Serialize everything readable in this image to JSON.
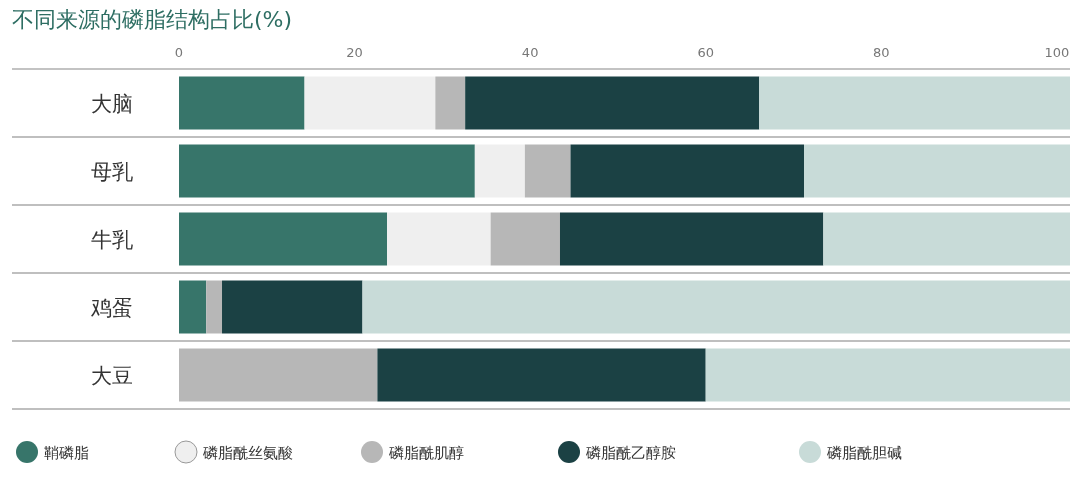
{
  "chart_data": {
    "type": "bar",
    "orientation": "horizontal",
    "stacked": true,
    "title": "不同来源的磷脂结构占比(%)",
    "categories": [
      "大脑",
      "母乳",
      "牛乳",
      "鸡蛋",
      "大豆"
    ],
    "series": [
      {
        "name": "鞘磷脂",
        "color": "#37756a",
        "values": [
          14.3,
          33.7,
          23.7,
          3.1,
          0
        ]
      },
      {
        "name": "磷脂酰丝氨酸",
        "color": "#efefef",
        "values": [
          14.9,
          5.7,
          11.8,
          0,
          0
        ]
      },
      {
        "name": "磷脂酰肌醇",
        "color": "#b7b7b7",
        "values": [
          3.4,
          5.2,
          7.9,
          1.8,
          22.6
        ]
      },
      {
        "name": "磷脂酰乙醇胺",
        "color": "#1b4144",
        "values": [
          33.5,
          26.6,
          30.0,
          16.0,
          37.4
        ]
      },
      {
        "name": "磷脂酰胆碱",
        "color": "#c8dbd8",
        "values": [
          35.4,
          30.3,
          28.1,
          80.6,
          41.5
        ]
      }
    ],
    "xlim": [
      0,
      101.5
    ],
    "xticks": [
      0,
      20,
      40,
      60,
      80,
      100
    ],
    "legend": "bottom"
  }
}
